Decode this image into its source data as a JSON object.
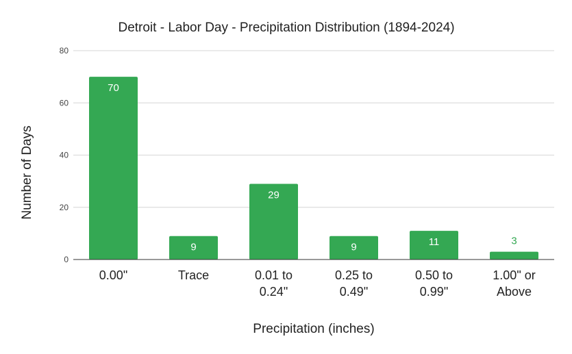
{
  "chart_data": {
    "type": "bar",
    "title": "Detroit - Labor Day - Precipitation Distribution (1894-2024)",
    "xlabel": "Precipitation (inches)",
    "ylabel": "Number of Days",
    "categories": [
      [
        "0.00\""
      ],
      [
        "Trace"
      ],
      [
        "0.01 to",
        "0.24\""
      ],
      [
        "0.25 to",
        "0.49\""
      ],
      [
        "0.50 to",
        "0.99\""
      ],
      [
        "1.00\" or",
        "Above"
      ]
    ],
    "values": [
      70,
      9,
      29,
      9,
      11,
      3
    ],
    "ylim": [
      0,
      80
    ],
    "yticks": [
      "0",
      "20",
      "40",
      "60",
      "80"
    ],
    "grid": true,
    "legend": "none",
    "colors": {
      "bar": "#34a853",
      "label_inside": "#ffffff",
      "label_outside": "#34a853"
    }
  }
}
